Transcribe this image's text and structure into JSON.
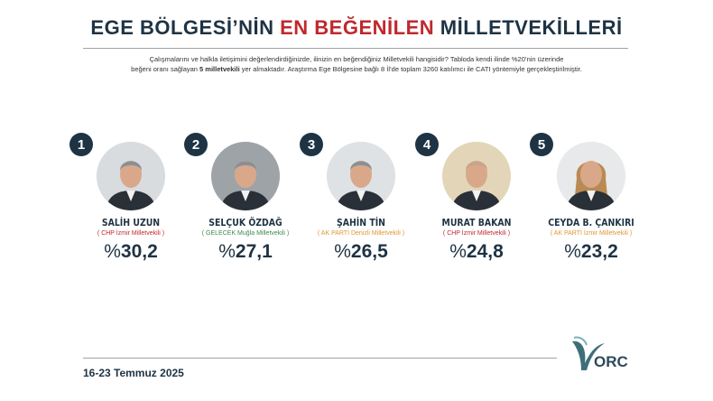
{
  "header": {
    "title_part1": "EGE BÖLGESİ’NİN ",
    "title_highlight": "EN BEĞENİLEN",
    "title_part2": " MİLLETVEKİLLERİ"
  },
  "description": {
    "line1": "Çalışmalarını ve halkla iletişimini değerlendirdiğinizde, ilinizin en beğendiğiniz Milletvekili hangisidir? Tabloda kendi ilinde %20’nin üzerinde",
    "line2_a": "beğeni oranı sağlayan ",
    "line2_bold": "5 milletvekili",
    "line2_b": " yer almaktadır. Araştırma Ege Bölgesine bağlı 8 İl’de toplam 3260 katılımcı ile  CATI yöntemiyle gerçekleştirilmiştir."
  },
  "colors": {
    "navy": "#1e3344",
    "red": "#c0282e",
    "chp": "#c0282e",
    "gelecek": "#3f8a4f",
    "akparti": "#e0962e"
  },
  "deputies": [
    {
      "rank": "1",
      "name": "SALİH UZUN",
      "party": "( CHP İzmir Milletvekili )",
      "party_color": "#c0282e",
      "percent_sign": "%",
      "value": "30,2"
    },
    {
      "rank": "2",
      "name": "SELÇUK ÖZDAĞ",
      "party": "( GELECEK Muğla Milletvekili )",
      "party_color": "#3f8a4f",
      "percent_sign": "%",
      "value": "27,1"
    },
    {
      "rank": "3",
      "name": "ŞAHİN TİN",
      "party": "( AK PARTİ Denizli Milletvekili )",
      "party_color": "#e0962e",
      "percent_sign": "%",
      "value": "26,5"
    },
    {
      "rank": "4",
      "name": "MURAT BAKAN",
      "party": "( CHP İzmir Milletvekili )",
      "party_color": "#c0282e",
      "percent_sign": "%",
      "value": "24,8"
    },
    {
      "rank": "5",
      "name": "CEYDA B. ÇANKIRI",
      "party": "( AK PARTİ İzmir Milletvekili )",
      "party_color": "#e0962e",
      "percent_sign": "%",
      "value": "23,2"
    }
  ],
  "footer": {
    "date": "16-23 Temmuz 2025",
    "logo_text": "ORC"
  }
}
